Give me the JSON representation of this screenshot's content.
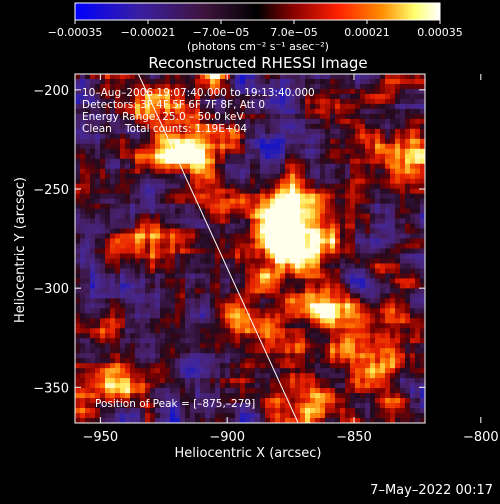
{
  "chart_data": {
    "type": "heatmap",
    "title": "Reconstructed RHESSI Image",
    "xlabel": "Heliocentric X (arcsec)",
    "ylabel": "Heliocentric Y (arcsec)",
    "xlim": [
      -960,
      -822
    ],
    "ylim": [
      -368,
      -192
    ],
    "x_ticks": [
      -950,
      -900,
      -850,
      -800
    ],
    "y_ticks": [
      -200,
      -250,
      -300,
      -350
    ],
    "x_tick_labels": [
      "−950",
      "−900",
      "−850",
      "−800"
    ],
    "y_tick_labels": [
      "−200",
      "−250",
      "−300",
      "−350"
    ],
    "colorbar": {
      "range": [
        -0.00035,
        0.00035
      ],
      "ticks": [
        -0.00035,
        -0.00021,
        -7e-05,
        7e-05,
        0.00021,
        0.00035
      ],
      "tick_labels": [
        "−0.00035",
        "−0.00021",
        "−7.0e−05",
        "7.0e−05",
        "0.00021",
        "0.00035"
      ],
      "unit_label": "(photons cm⁻² s⁻¹ asec⁻²)",
      "colors": [
        "#0000ff",
        "#5a2a9a",
        "#3a1040",
        "#000000",
        "#8b0000",
        "#ff2000",
        "#ff8c00",
        "#ffff80",
        "#ffffff"
      ]
    },
    "annotations": {
      "time": "10–Aug–2006 19:07:40.000 to 19:13:40.000",
      "detectors": "Detectors: 3F 4F 5F 6F 7F 8F, Att 0",
      "energy": "Energy Range: 25.0 – 50.0 keV",
      "clean_label": "Clean",
      "total_counts": "Total counts: 1.19E+04",
      "peak": "Position of Peak = [–875,–279]"
    },
    "limb_line": {
      "x": [
        -935,
        -872
      ],
      "y": [
        -192,
        -368
      ]
    },
    "bright_sources": [
      {
        "x": -882,
        "y": -262,
        "level": 1.0
      },
      {
        "x": -875,
        "y": -279,
        "level": 1.0
      },
      {
        "x": -915,
        "y": -233,
        "level": 0.9
      },
      {
        "x": -860,
        "y": -310,
        "level": 0.75
      },
      {
        "x": -805,
        "y": -240,
        "level": 0.85
      },
      {
        "x": -790,
        "y": -270,
        "level": 0.7
      },
      {
        "x": -930,
        "y": -280,
        "level": 0.55
      },
      {
        "x": -895,
        "y": -320,
        "level": 0.6
      },
      {
        "x": -840,
        "y": -335,
        "level": 0.55
      },
      {
        "x": -868,
        "y": -360,
        "level": 0.7
      },
      {
        "x": -945,
        "y": -345,
        "level": 0.5
      },
      {
        "x": -925,
        "y": -210,
        "level": 0.45
      },
      {
        "x": -830,
        "y": -230,
        "level": 0.5
      },
      {
        "x": -812,
        "y": -318,
        "level": 0.5
      }
    ]
  },
  "footer": {
    "date_stamp": "7–May–2022 00:17"
  }
}
